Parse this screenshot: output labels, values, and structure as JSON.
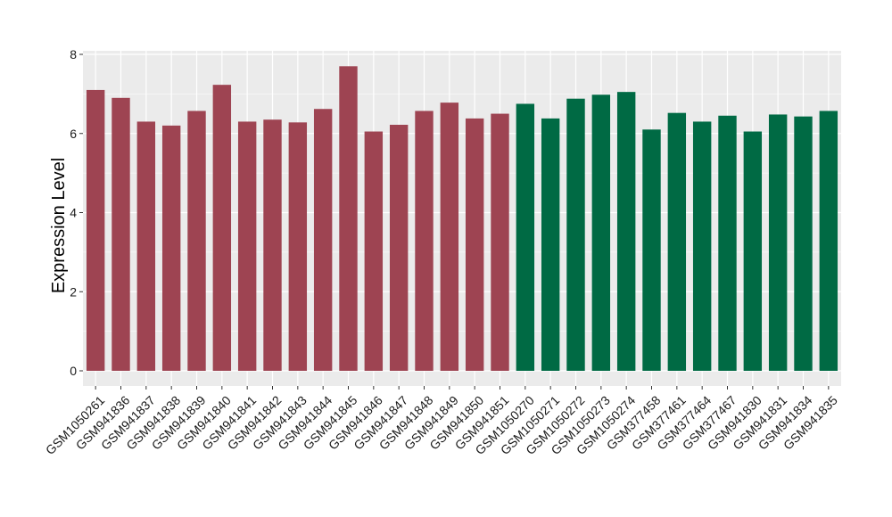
{
  "chart_data": {
    "type": "bar",
    "title": "",
    "xlabel": "",
    "ylabel": "Expression Level",
    "ylim": [
      0,
      8
    ],
    "yticks": [
      0,
      2,
      4,
      6,
      8
    ],
    "grid": true,
    "legend": "none",
    "colors": {
      "group1": "#9e4452",
      "group2": "#006a44",
      "panel": "#ebebeb",
      "grid": "#ffffff"
    },
    "categories": [
      "GSM1050261",
      "GSM941836",
      "GSM941837",
      "GSM941838",
      "GSM941839",
      "GSM941840",
      "GSM941841",
      "GSM941842",
      "GSM941843",
      "GSM941844",
      "GSM941845",
      "GSM941846",
      "GSM941847",
      "GSM941848",
      "GSM941849",
      "GSM941850",
      "GSM941851",
      "GSM1050270",
      "GSM1050271",
      "GSM1050272",
      "GSM1050273",
      "GSM1050274",
      "GSM377458",
      "GSM377461",
      "GSM377464",
      "GSM377467",
      "GSM941830",
      "GSM941831",
      "GSM941834",
      "GSM941835"
    ],
    "values": [
      7.1,
      6.9,
      6.3,
      6.2,
      6.57,
      7.23,
      6.3,
      6.35,
      6.28,
      6.62,
      7.7,
      6.05,
      6.22,
      6.57,
      6.78,
      6.38,
      6.5,
      6.75,
      6.38,
      6.88,
      6.98,
      7.05,
      6.1,
      6.52,
      6.3,
      6.45,
      6.05,
      6.48,
      6.43,
      6.57
    ],
    "groups": [
      1,
      1,
      1,
      1,
      1,
      1,
      1,
      1,
      1,
      1,
      1,
      1,
      1,
      1,
      1,
      1,
      1,
      2,
      2,
      2,
      2,
      2,
      2,
      2,
      2,
      2,
      2,
      2,
      2,
      2
    ]
  }
}
